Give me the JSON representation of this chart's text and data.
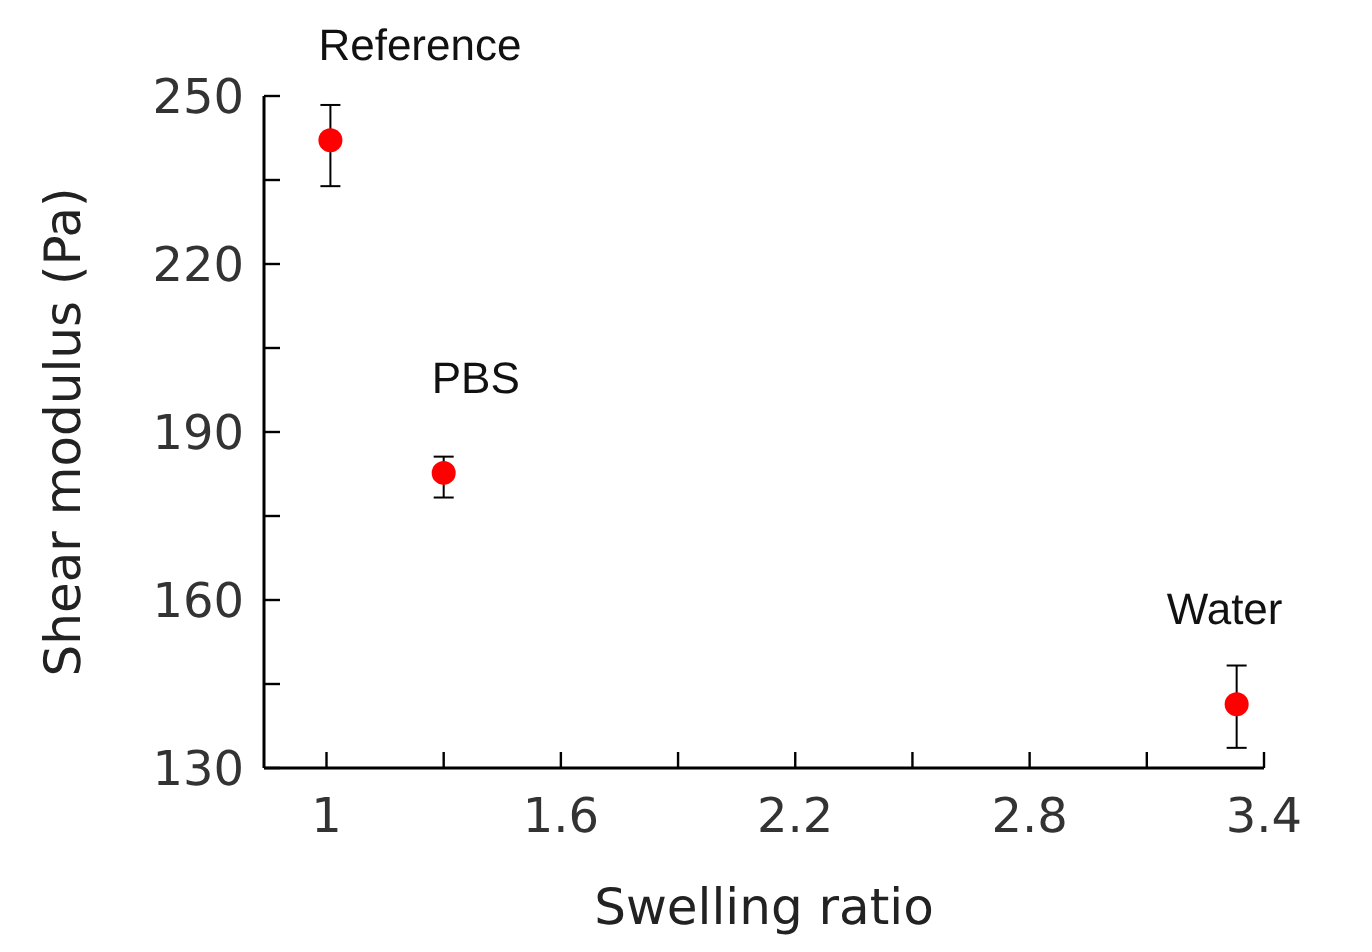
{
  "chart_data": {
    "type": "scatter",
    "xlabel": "Swelling ratio",
    "ylabel": "Shear modulus (Pa)",
    "x": [
      1.01,
      1.3,
      3.33
    ],
    "series": [
      {
        "color": "#ff0000",
        "values": [
          242.1,
          182.7,
          141.4
        ],
        "errors": [
          [
            233.9,
            248.4
          ],
          [
            178.3,
            185.6
          ],
          [
            133.6,
            148.3
          ]
        ]
      }
    ],
    "xlim": [
      0.84,
      3.4
    ],
    "ylim": [
      130,
      250
    ],
    "xticks": [
      1,
      {
        "value": 1.3,
        "label": null
      },
      1.6,
      {
        "value": 1.9,
        "label": null
      },
      2.2,
      {
        "value": 2.5,
        "label": null
      },
      2.8,
      {
        "value": 3.1,
        "label": null
      },
      3.4
    ],
    "yticks": [
      130,
      {
        "value": 145,
        "label": null
      },
      160,
      {
        "value": 175,
        "label": null
      },
      190,
      {
        "value": 205,
        "label": null
      },
      220,
      {
        "value": 235,
        "label": null
      },
      250
    ],
    "marker": "circle",
    "annotations": [
      {
        "text": "Reference",
        "x": 1.01,
        "y": 242.1
      },
      {
        "text": "PBS",
        "x": 1.3,
        "y": 182.7
      },
      {
        "text": "Water",
        "x": 3.33,
        "y": 141.4
      }
    ]
  }
}
